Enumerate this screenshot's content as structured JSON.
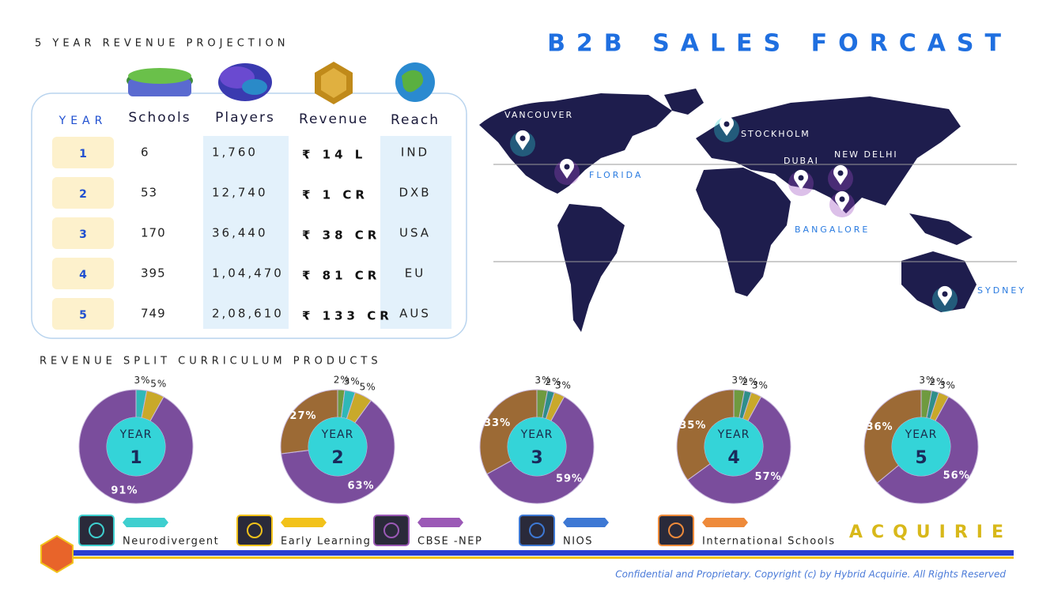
{
  "projection": {
    "title": "5 YEAR REVENUE PROJECTION",
    "headers": [
      "YEAR",
      "Schools",
      "Players",
      "Revenue",
      "Reach"
    ],
    "rows": [
      [
        "1",
        "6",
        "1,760",
        "₹ 14 L",
        "IND"
      ],
      [
        "2",
        "53",
        "12,740",
        "₹ 1 CR",
        "DXB"
      ],
      [
        "3",
        "170",
        "36,440",
        "₹ 38 CR",
        "USA"
      ],
      [
        "4",
        "395",
        "1,04,470",
        "₹ 81 CR",
        "EU"
      ],
      [
        "5",
        "749",
        "2,08,610",
        "₹ 133 CR",
        "AUS"
      ]
    ]
  },
  "forecast": {
    "title": "B2B SALES FORCAST",
    "cities": [
      "VANCOUVER",
      "STOCKHOLM",
      "FLORIDA",
      "DUBAI",
      "NEW DELHI",
      "BANGALORE",
      "SYDNEY"
    ]
  },
  "split": {
    "title": "REVENUE SPLIT CURRICULUM PRODUCTS",
    "center_label": "YEAR",
    "donuts": [
      {
        "year": "1",
        "segments": [
          {
            "color": "#2fb8b8",
            "value": 3,
            "value_label": "3%"
          },
          {
            "color": "#c9a92a",
            "value": 5,
            "value_label": "5%"
          },
          {
            "color": "#7a4d9c",
            "value": 91,
            "value_label": "91%"
          }
        ]
      },
      {
        "year": "2",
        "segments": [
          {
            "color": "#6f9a3f",
            "value": 2,
            "value_label": "2%"
          },
          {
            "color": "#2fb8b8",
            "value": 3,
            "value_label": "3%"
          },
          {
            "color": "#c9a92a",
            "value": 5,
            "value_label": "5%"
          },
          {
            "color": "#7a4d9c",
            "value": 63,
            "value_label": "63%"
          },
          {
            "color": "#9c6a35",
            "value": 27,
            "value_label": "27%"
          }
        ]
      },
      {
        "year": "3",
        "segments": [
          {
            "color": "#6f9a3f",
            "value": 3,
            "value_label": "3%"
          },
          {
            "color": "#2f8f8a",
            "value": 2,
            "value_label": "2%"
          },
          {
            "color": "#c9a92a",
            "value": 3,
            "value_label": "3%"
          },
          {
            "color": "#7a4d9c",
            "value": 59,
            "value_label": "59%"
          },
          {
            "color": "#9c6a35",
            "value": 33,
            "value_label": "33%"
          }
        ]
      },
      {
        "year": "4",
        "segments": [
          {
            "color": "#6f9a3f",
            "value": 3,
            "value_label": "3%"
          },
          {
            "color": "#2f8f8a",
            "value": 2,
            "value_label": "2%"
          },
          {
            "color": "#c9a92a",
            "value": 3,
            "value_label": "3%"
          },
          {
            "color": "#7a4d9c",
            "value": 57,
            "value_label": "57%"
          },
          {
            "color": "#9c6a35",
            "value": 35,
            "value_label": "35%"
          }
        ]
      },
      {
        "year": "5",
        "segments": [
          {
            "color": "#6f9a3f",
            "value": 3,
            "value_label": "3%"
          },
          {
            "color": "#2f8f8a",
            "value": 2,
            "value_label": "2%"
          },
          {
            "color": "#c9a92a",
            "value": 3,
            "value_label": "3%"
          },
          {
            "color": "#7a4d9c",
            "value": 56,
            "value_label": "56%"
          },
          {
            "color": "#9c6a35",
            "value": 36,
            "value_label": "36%"
          }
        ]
      }
    ]
  },
  "legend": [
    {
      "name": "Neurodivergent",
      "color": "#3ecfcf"
    },
    {
      "name": "Early Learning",
      "color": "#f2c21a"
    },
    {
      "name": "CBSE -NEP",
      "color": "#9b59b6"
    },
    {
      "name": "NIOS",
      "color": "#3d78d4"
    },
    {
      "name": "International Schools",
      "color": "#ee8a3a"
    }
  ],
  "brand": "ACQUIRIE",
  "footer": "Confidential and Proprietary. Copyright (c) by Hybrid Acquirie. All Rights Reserved"
}
